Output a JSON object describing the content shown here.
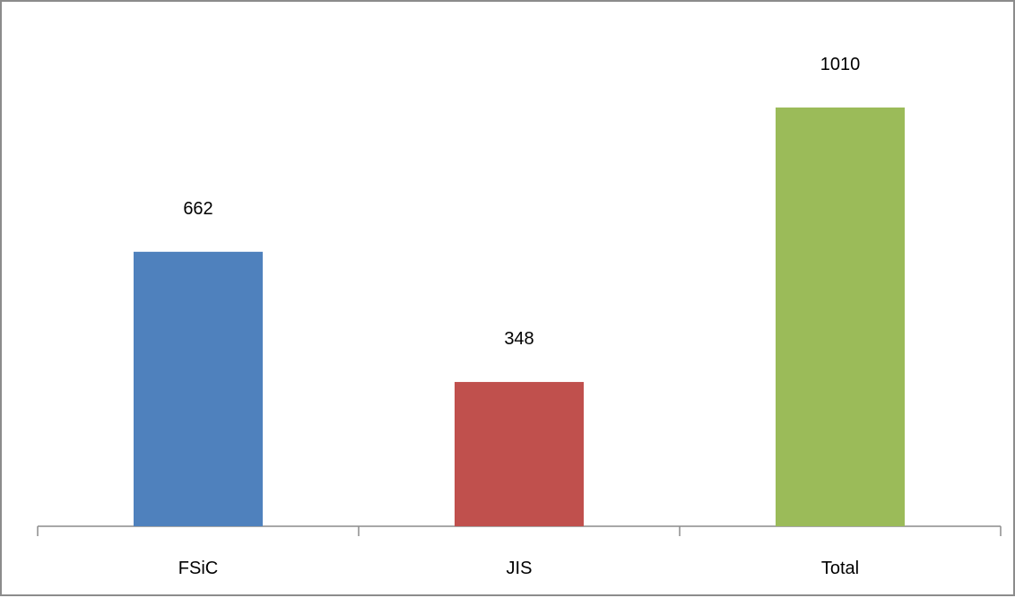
{
  "chart_data": {
    "type": "bar",
    "categories": [
      "FSiC",
      "JIS",
      "Total"
    ],
    "values": [
      662,
      348,
      1010
    ],
    "data_labels": [
      "662",
      "348",
      "1010"
    ],
    "colors": [
      "#4f81bd",
      "#c0504d",
      "#9bbb59"
    ],
    "ylim": [
      0,
      1200
    ],
    "grid": false,
    "legend": "none",
    "y_axis_visible": false
  }
}
